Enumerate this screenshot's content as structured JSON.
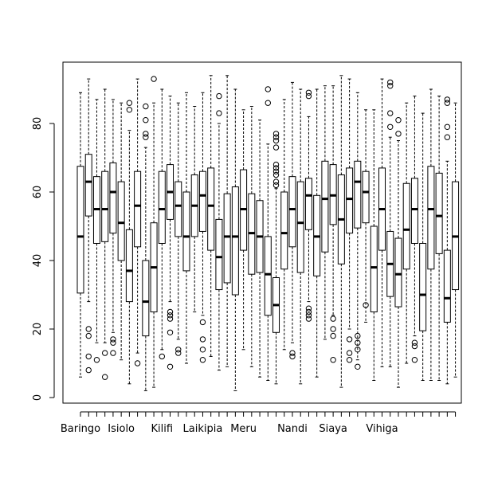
{
  "chart_data": {
    "type": "boxplot",
    "title": "",
    "xlabel": "",
    "ylabel": "",
    "ylim": [
      -2,
      100
    ],
    "y_ticks": [
      0,
      20,
      40,
      60,
      80
    ],
    "x_tick_labels": [
      {
        "index": 1,
        "label": "Baringo"
      },
      {
        "index": 6,
        "label": "Isiolo"
      },
      {
        "index": 11,
        "label": "Kilifi"
      },
      {
        "index": 16,
        "label": "Laikipia"
      },
      {
        "index": 21,
        "label": "Meru"
      },
      {
        "index": 27,
        "label": "Nandi"
      },
      {
        "index": 32,
        "label": "Siaya"
      },
      {
        "index": 38,
        "label": "Vihiga"
      }
    ],
    "boxes": [
      {
        "wl": 6,
        "q1": 30.5,
        "med": 47,
        "q3": 67.5,
        "wh": 89,
        "out": []
      },
      {
        "wl": 28,
        "q1": 53,
        "med": 63,
        "q3": 71,
        "wh": 93,
        "out": [
          20,
          18,
          12,
          8
        ]
      },
      {
        "wl": 16,
        "q1": 45,
        "med": 55,
        "q3": 64.5,
        "wh": 87,
        "out": [
          11
        ]
      },
      {
        "wl": 16,
        "q1": 45.5,
        "med": 55,
        "q3": 66,
        "wh": 90,
        "out": [
          13,
          6
        ]
      },
      {
        "wl": 19,
        "q1": 48,
        "med": 60,
        "q3": 68.5,
        "wh": 87,
        "out": [
          17,
          16,
          13
        ]
      },
      {
        "wl": 11,
        "q1": 40,
        "med": 51,
        "q3": 63,
        "wh": 86,
        "out": []
      },
      {
        "wl": 4,
        "q1": 28,
        "med": 37,
        "q3": 49,
        "wh": 78,
        "out": [
          86,
          84
        ]
      },
      {
        "wl": 13,
        "q1": 44,
        "med": 56,
        "q3": 66,
        "wh": 93,
        "out": [
          10
        ]
      },
      {
        "wl": 2,
        "q1": 18,
        "med": 28,
        "q3": 40,
        "wh": 73,
        "out": [
          85,
          81,
          77,
          76
        ]
      },
      {
        "wl": 3,
        "q1": 25,
        "med": 38,
        "q3": 51,
        "wh": 86,
        "out": [
          93
        ]
      },
      {
        "wl": 14,
        "q1": 45,
        "med": 55,
        "q3": 66,
        "wh": 90,
        "out": [
          12
        ]
      },
      {
        "wl": 28,
        "q1": 52,
        "med": 60,
        "q3": 68,
        "wh": 88,
        "out": [
          25,
          24,
          23,
          19,
          9
        ]
      },
      {
        "wl": 17,
        "q1": 47,
        "med": 56,
        "q3": 63,
        "wh": 86,
        "out": [
          14,
          13
        ]
      },
      {
        "wl": 10,
        "q1": 37,
        "med": 47,
        "q3": 60,
        "wh": 89,
        "out": []
      },
      {
        "wl": 25,
        "q1": 47,
        "med": 56,
        "q3": 65,
        "wh": 85,
        "out": []
      },
      {
        "wl": 24,
        "q1": 48.5,
        "med": 59,
        "q3": 66,
        "wh": 89,
        "out": [
          22,
          17,
          14,
          11
        ]
      },
      {
        "wl": 12,
        "q1": 43,
        "med": 56,
        "q3": 67,
        "wh": 94,
        "out": []
      },
      {
        "wl": 8,
        "q1": 31.5,
        "med": 41,
        "q3": 52,
        "wh": 80,
        "out": [
          88,
          83
        ]
      },
      {
        "wl": 9,
        "q1": 33.5,
        "med": 47,
        "q3": 59.5,
        "wh": 94,
        "out": []
      },
      {
        "wl": 2,
        "q1": 30,
        "med": 47,
        "q3": 61.5,
        "wh": 90,
        "out": []
      },
      {
        "wl": 14,
        "q1": 43,
        "med": 55,
        "q3": 66.5,
        "wh": 84,
        "out": []
      },
      {
        "wl": 9,
        "q1": 36,
        "med": 48,
        "q3": 59.5,
        "wh": 85,
        "out": []
      },
      {
        "wl": 6,
        "q1": 36.5,
        "med": 47,
        "q3": 57.5,
        "wh": 81,
        "out": []
      },
      {
        "wl": 5,
        "q1": 24,
        "med": 36,
        "q3": 47,
        "wh": 74,
        "out": [
          90,
          86
        ]
      },
      {
        "wl": 4,
        "q1": 19,
        "med": 27,
        "q3": 35,
        "wh": 61,
        "out": [
          77,
          76,
          75,
          73,
          68,
          67,
          66,
          65,
          63,
          62
        ]
      },
      {
        "wl": 14,
        "q1": 37.5,
        "med": 48,
        "q3": 60,
        "wh": 87,
        "out": []
      },
      {
        "wl": 16,
        "q1": 44,
        "med": 55,
        "q3": 64.5,
        "wh": 92,
        "out": [
          13,
          12
        ]
      },
      {
        "wl": 4,
        "q1": 36.5,
        "med": 51,
        "q3": 63,
        "wh": 90,
        "out": []
      },
      {
        "wl": 28,
        "q1": 49,
        "med": 59,
        "q3": 64,
        "wh": 82,
        "out": [
          89,
          88,
          26,
          25,
          24,
          23
        ]
      },
      {
        "wl": 6,
        "q1": 35.5,
        "med": 47,
        "q3": 59,
        "wh": 90,
        "out": []
      },
      {
        "wl": 17,
        "q1": 42.5,
        "med": 58,
        "q3": 69,
        "wh": 91,
        "out": []
      },
      {
        "wl": 24,
        "q1": 50.5,
        "med": 59,
        "q3": 68,
        "wh": 91,
        "out": [
          23,
          20,
          18,
          11
        ]
      },
      {
        "wl": 3,
        "q1": 39,
        "med": 52,
        "q3": 65,
        "wh": 94,
        "out": []
      },
      {
        "wl": 20,
        "q1": 48,
        "med": 58,
        "q3": 67,
        "wh": 93,
        "out": [
          17,
          13,
          11
        ]
      },
      {
        "wl": 11,
        "q1": 49.5,
        "med": 63,
        "q3": 69,
        "wh": 89,
        "out": [
          18,
          16,
          14,
          9
        ]
      },
      {
        "wl": 22,
        "q1": 51,
        "med": 60,
        "q3": 66,
        "wh": 84,
        "out": [
          27
        ]
      },
      {
        "wl": 5,
        "q1": 25,
        "med": 38,
        "q3": 50,
        "wh": 84,
        "out": []
      },
      {
        "wl": 9,
        "q1": 43,
        "med": 55,
        "q3": 67,
        "wh": 93,
        "out": []
      },
      {
        "wl": 9,
        "q1": 29.5,
        "med": 39,
        "q3": 48.5,
        "wh": 76,
        "out": [
          92,
          91,
          83,
          79
        ]
      },
      {
        "wl": 3,
        "q1": 26.5,
        "med": 36,
        "q3": 46.5,
        "wh": 75,
        "out": [
          81,
          77
        ]
      },
      {
        "wl": 10,
        "q1": 37.5,
        "med": 49,
        "q3": 62.5,
        "wh": 86,
        "out": []
      },
      {
        "wl": 18,
        "q1": 45,
        "med": 55,
        "q3": 64,
        "wh": 88,
        "out": [
          16,
          15,
          11
        ]
      },
      {
        "wl": 5,
        "q1": 19.5,
        "med": 30,
        "q3": 45,
        "wh": 83,
        "out": []
      },
      {
        "wl": 5,
        "q1": 37.5,
        "med": 55,
        "q3": 67.5,
        "wh": 90,
        "out": []
      },
      {
        "wl": 5,
        "q1": 42,
        "med": 53,
        "q3": 65.5,
        "wh": 88,
        "out": []
      },
      {
        "wl": 4,
        "q1": 22,
        "med": 29,
        "q3": 43,
        "wh": 69,
        "out": [
          87,
          86,
          79,
          76
        ]
      },
      {
        "wl": 6,
        "q1": 31.5,
        "med": 47,
        "q3": 63,
        "wh": 86,
        "out": []
      }
    ]
  }
}
